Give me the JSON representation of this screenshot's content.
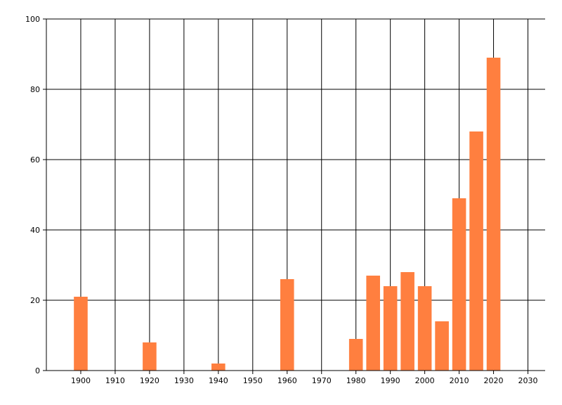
{
  "chart_data": {
    "type": "bar",
    "x": [
      1900,
      1920,
      1940,
      1960,
      1980,
      1985,
      1990,
      1995,
      2000,
      2005,
      2010,
      2015,
      2020
    ],
    "values": [
      21,
      8,
      2,
      26,
      9,
      27,
      24,
      28,
      24,
      14,
      49,
      68,
      89
    ],
    "color": "#ff7f3f",
    "xlim": [
      1890,
      2035
    ],
    "xticks": [
      1900,
      1910,
      1920,
      1930,
      1940,
      1950,
      1960,
      1970,
      1980,
      1990,
      2000,
      2010,
      2020,
      2030
    ],
    "ylim": [
      0,
      100
    ],
    "yticks": [
      0,
      20,
      40,
      60,
      80,
      100
    ],
    "grid": true
  }
}
